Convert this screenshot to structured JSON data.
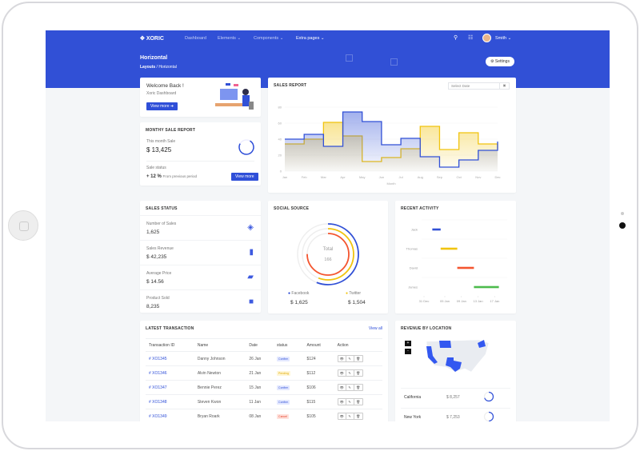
{
  "app": {
    "brand": "XORIC",
    "nav": [
      "Dashboard",
      "Elements",
      "Components",
      "Extra pages"
    ],
    "user": "Smith"
  },
  "page": {
    "title": "Horizontal",
    "breadcrumb": [
      "Layouts",
      "Horizontal"
    ],
    "settings_label": "Settings"
  },
  "welcome": {
    "title": "Welcome Back !",
    "subtitle": "Xoric Dashboard",
    "button": "View more"
  },
  "monthly": {
    "title": "MONTHY SALE REPORT",
    "this_month_label": "This month Sale",
    "this_month_value": "$ 13,425",
    "status_label": "Sale status",
    "change": "+ 12 %",
    "change_note": "From previous period",
    "button": "View more"
  },
  "sales_report": {
    "title": "SALES REPORT",
    "date_placeholder": "Select Date"
  },
  "chart_data": {
    "type": "line",
    "step": true,
    "categories": [
      "Jan",
      "Feb",
      "Mar",
      "Apr",
      "May",
      "Jun",
      "Jul",
      "Aug",
      "Sep",
      "Oct",
      "Nov",
      "Dec"
    ],
    "xlabel": "Month",
    "ylim": [
      0,
      80
    ],
    "yticks": [
      "0",
      "20",
      "40",
      "60",
      "80"
    ],
    "series": [
      {
        "color": "#3150d6",
        "values": [
          40,
          46,
          31,
          74,
          62,
          33,
          41,
          18,
          5,
          14,
          26,
          37
        ]
      },
      {
        "color": "#f1c40f",
        "values": [
          34,
          40,
          61,
          44,
          12,
          17,
          28,
          56,
          27,
          48,
          34,
          28
        ]
      }
    ]
  },
  "sales_status": {
    "title": "SALES STATUS",
    "items": [
      {
        "label": "Number of Sales",
        "value": "1,625",
        "icon": "layers-icon"
      },
      {
        "label": "Sales Revenue",
        "value": "$ 42,235",
        "icon": "bar-chart-icon"
      },
      {
        "label": "Average Price",
        "value": "$ 14.56",
        "icon": "ticket-icon"
      },
      {
        "label": "Product Sold",
        "value": "8,235",
        "icon": "box-icon"
      }
    ]
  },
  "social": {
    "title": "SOCIAL SOURCE",
    "total_label": "Total",
    "total_value": "166",
    "rings": [
      {
        "color": "#3150d6",
        "fraction": 0.56
      },
      {
        "color": "#f1c40f",
        "fraction": 0.56
      },
      {
        "color": "#f4552f",
        "fraction": 0.75
      }
    ],
    "legend": [
      {
        "label": "Facebook",
        "value": "$ 1,625",
        "color": "#1f3fd1"
      },
      {
        "label": "Twitter",
        "value": "$ 1,504",
        "color": "#f1c40f"
      }
    ]
  },
  "activity": {
    "title": "RECENT ACTIVITY",
    "ticks": [
      "31 Dec",
      "05 Jan",
      "09 Jan",
      "13 Jan",
      "17 Jan"
    ],
    "rows": [
      {
        "name": "Jack",
        "start": "02 Jan",
        "end": "04 Jan",
        "color": "#3150d6"
      },
      {
        "name": "Thomas",
        "start": "04 Jan",
        "end": "08 Jan",
        "color": "#f1c40f"
      },
      {
        "name": "David",
        "start": "08 Jan",
        "end": "12 Jan",
        "color": "#f4552f"
      },
      {
        "name": "James",
        "start": "12 Jan",
        "end": "18 Jan",
        "color": "#4cbb4c"
      }
    ]
  },
  "transactions": {
    "title": "LATEST TRANSACTION",
    "view_all": "View all",
    "headers": [
      "Transaction ID",
      "Name",
      "Date",
      "status",
      "Amount",
      "Action"
    ],
    "rows": [
      {
        "id": "# XO1345",
        "name": "Danny Johnson",
        "date": "26 Jan",
        "status": "Confirm",
        "amount": "$124"
      },
      {
        "id": "# XO1346",
        "name": "Alvin Newton",
        "date": "21 Jan",
        "status": "Pending",
        "amount": "$112"
      },
      {
        "id": "# XO1347",
        "name": "Bennie Perez",
        "date": "15 Jan",
        "status": "Confirm",
        "amount": "$106"
      },
      {
        "id": "# XO1348",
        "name": "Steven Kwon",
        "date": "11 Jan",
        "status": "Confirm",
        "amount": "$115"
      },
      {
        "id": "# XO1349",
        "name": "Bryan Roark",
        "date": "08 Jan",
        "status": "Cancel",
        "amount": "$105"
      }
    ]
  },
  "location": {
    "title": "REVENUE BY LOCATION",
    "zoom_in": "+",
    "zoom_out": "-",
    "rows": [
      {
        "state": "California",
        "value": "$ 8,257"
      },
      {
        "state": "New York",
        "value": "$ 7,253"
      }
    ]
  }
}
